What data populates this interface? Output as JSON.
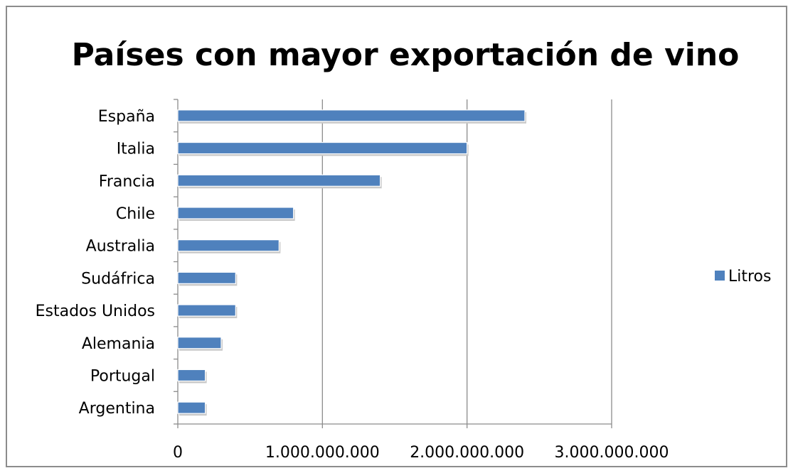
{
  "chart_data": {
    "type": "bar",
    "orientation": "horizontal",
    "title": "Países con mayor exportación de vino",
    "xlabel": "",
    "ylabel": "",
    "categories": [
      "España",
      "Italia",
      "Francia",
      "Chile",
      "Australia",
      "Sudáfrica",
      "Estados Unidos",
      "Alemania",
      "Portugal",
      "Argentina"
    ],
    "series": [
      {
        "name": "Litros",
        "color": "#4f81bd",
        "values": [
          2400000000,
          2000000000,
          1400000000,
          800000000,
          700000000,
          400000000,
          400000000,
          300000000,
          190000000,
          190000000
        ]
      }
    ],
    "xlim": [
      0,
      3000000000
    ],
    "x_ticks": [
      0,
      1000000000,
      2000000000,
      3000000000
    ],
    "x_tick_labels": [
      "0",
      "1.000.000.000",
      "2.000.000.000",
      "3.000.000.000"
    ],
    "grid": true,
    "legend_position": "right"
  }
}
